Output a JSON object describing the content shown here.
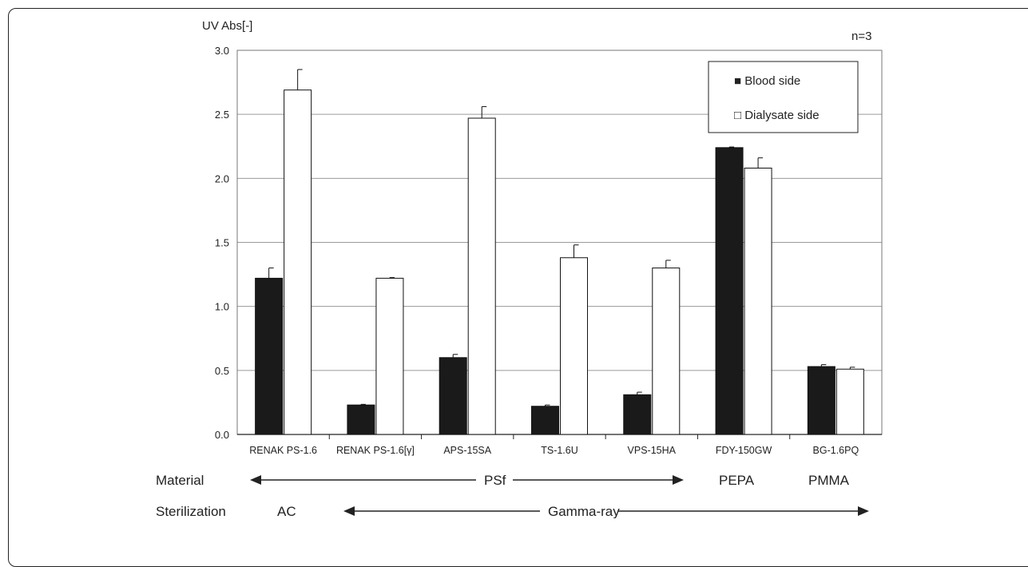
{
  "chart_data": {
    "type": "bar",
    "ylabel": "UV Abs[-]",
    "note": "n=3",
    "ylim": [
      0,
      3.0
    ],
    "yticks": [
      "0.0",
      "0.5",
      "1.0",
      "1.5",
      "2.0",
      "2.5",
      "3.0"
    ],
    "categories": [
      "RENAK PS-1.6",
      "RENAK PS-1.6[γ]",
      "APS-15SA",
      "TS-1.6U",
      "VPS-15HA",
      "FDY-150GW",
      "BG-1.6PQ"
    ],
    "series": [
      {
        "name": "Blood side",
        "color": "#1a1a1a",
        "values": [
          1.22,
          0.23,
          0.6,
          0.22,
          0.31,
          2.24,
          0.53
        ],
        "errors": [
          0.08,
          0.005,
          0.025,
          0.01,
          0.02,
          0.005,
          0.015
        ]
      },
      {
        "name": "Dialysate side",
        "color": "#ffffff",
        "values": [
          2.69,
          1.22,
          2.47,
          1.38,
          1.3,
          2.08,
          0.51
        ],
        "errors": [
          0.16,
          0.005,
          0.09,
          0.1,
          0.06,
          0.08,
          0.015
        ]
      }
    ],
    "legend": [
      "■ Blood side",
      "□ Dialysate side"
    ],
    "legend_position": "top-right",
    "grid": true
  },
  "material_row": {
    "label": "Material",
    "groups": [
      "PSf",
      "PEPA",
      "PMMA"
    ]
  },
  "sterilization_row": {
    "label": "Sterilization",
    "groups": [
      "AC",
      "Gamma-ray"
    ]
  }
}
